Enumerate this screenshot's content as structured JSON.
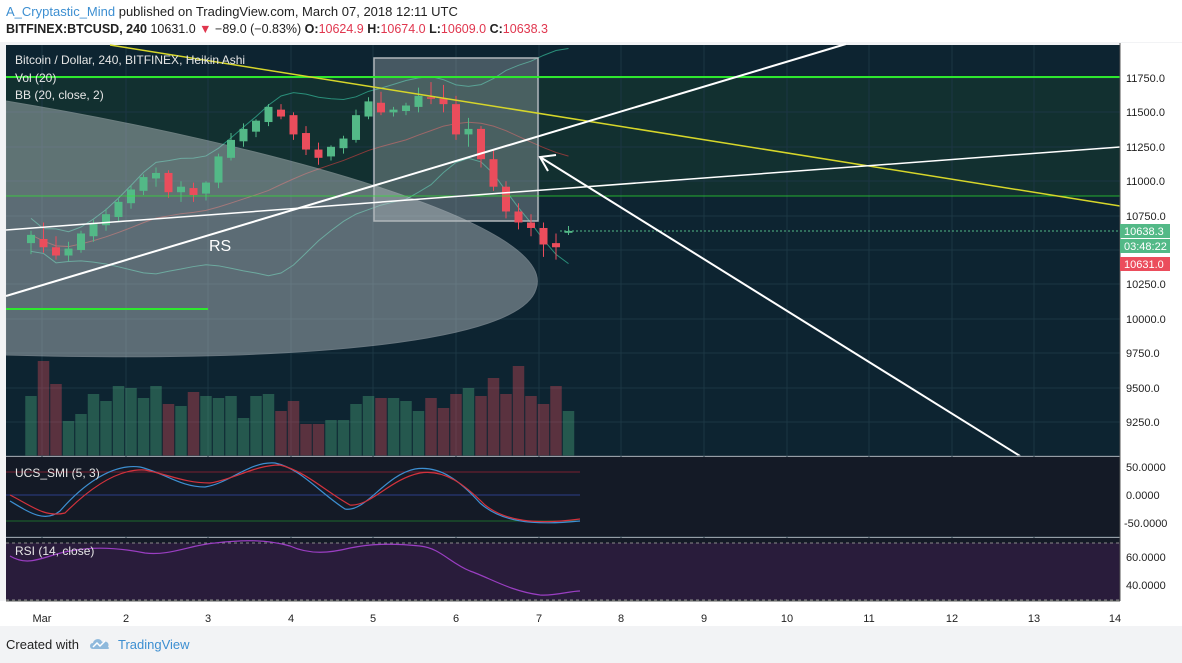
{
  "header": {
    "author": "A_Cryptastic_Mind",
    "published_text": " published on TradingView.com, March 07, 2018 12:11 UTC",
    "symbol": "BITFINEX:BTCUSD, 240",
    "last": "10631.0",
    "change_arrow": "▼",
    "change": "−89.0 (−0.83%)",
    "o_label": "O:",
    "o_value": "10624.9",
    "h_label": "H:",
    "h_value": "10674.0",
    "l_label": "L:",
    "l_value": "10609.0",
    "c_label": "C:",
    "c_value": "10638.3"
  },
  "legend": {
    "title": "Bitcoin / Dollar, 240, BITFINEX, Heikin Ashi",
    "vol": "Vol (20)",
    "bb": "BB (20, close, 2)"
  },
  "annotation": {
    "rs_label": "RS"
  },
  "price_axis": {
    "ticks": [
      "11750.0",
      "11500.0",
      "11250.0",
      "11000.0",
      "10750.0",
      "10250.0",
      "10000.0",
      "9750.0",
      "9500.0",
      "9250.0"
    ],
    "badges": [
      {
        "text": "10638.3",
        "color": "#53b987"
      },
      {
        "text": "03:48:22",
        "color": "#53b987"
      },
      {
        "text": "10631.0",
        "color": "#eb4d5c"
      }
    ]
  },
  "smi_pane": {
    "title": "UCS_SMI (5, 3)",
    "ticks": [
      "50.0000",
      "0.0000",
      "-50.0000"
    ]
  },
  "rsi_pane": {
    "title": "RSI (14, close)",
    "ticks": [
      "60.0000",
      "40.0000"
    ]
  },
  "time_axis": {
    "labels": [
      "Mar",
      "2",
      "3",
      "4",
      "5",
      "6",
      "7",
      "8",
      "9",
      "10",
      "11",
      "12",
      "13",
      "14"
    ]
  },
  "footer": {
    "created_with": "Created with",
    "brand": "TradingView"
  },
  "colors": {
    "background": "#0e2330",
    "up_candle": "#53b987",
    "down_candle": "#eb4d5c",
    "horizontal_level": "#2ee82e",
    "trendline_yellow": "#d6d62a",
    "trendline_white": "#ffffff"
  },
  "chart_data": {
    "type": "candlestick",
    "candles": [
      {
        "o": 10550,
        "h": 10640,
        "l": 10470,
        "c": 10610
      },
      {
        "o": 10580,
        "h": 10700,
        "l": 10480,
        "c": 10520
      },
      {
        "o": 10520,
        "h": 10600,
        "l": 10430,
        "c": 10460
      },
      {
        "o": 10460,
        "h": 10560,
        "l": 10420,
        "c": 10510
      },
      {
        "o": 10500,
        "h": 10640,
        "l": 10480,
        "c": 10620
      },
      {
        "o": 10600,
        "h": 10720,
        "l": 10560,
        "c": 10690
      },
      {
        "o": 10680,
        "h": 10800,
        "l": 10640,
        "c": 10760
      },
      {
        "o": 10740,
        "h": 10870,
        "l": 10710,
        "c": 10850
      },
      {
        "o": 10840,
        "h": 10970,
        "l": 10800,
        "c": 10940
      },
      {
        "o": 10930,
        "h": 11050,
        "l": 10900,
        "c": 11030
      },
      {
        "o": 11020,
        "h": 11100,
        "l": 10960,
        "c": 11060
      },
      {
        "o": 11060,
        "h": 11080,
        "l": 10880,
        "c": 10920
      },
      {
        "o": 10920,
        "h": 11000,
        "l": 10850,
        "c": 10960
      },
      {
        "o": 10950,
        "h": 10990,
        "l": 10850,
        "c": 10900
      },
      {
        "o": 10910,
        "h": 11000,
        "l": 10860,
        "c": 10990
      },
      {
        "o": 10990,
        "h": 11200,
        "l": 10950,
        "c": 11180
      },
      {
        "o": 11170,
        "h": 11350,
        "l": 11150,
        "c": 11300
      },
      {
        "o": 11290,
        "h": 11420,
        "l": 11250,
        "c": 11380
      },
      {
        "o": 11360,
        "h": 11450,
        "l": 11320,
        "c": 11440
      },
      {
        "o": 11430,
        "h": 11560,
        "l": 11400,
        "c": 11540
      },
      {
        "o": 11520,
        "h": 11560,
        "l": 11450,
        "c": 11470
      },
      {
        "o": 11480,
        "h": 11500,
        "l": 11300,
        "c": 11340
      },
      {
        "o": 11350,
        "h": 11400,
        "l": 11190,
        "c": 11230
      },
      {
        "o": 11230,
        "h": 11280,
        "l": 11120,
        "c": 11170
      },
      {
        "o": 11180,
        "h": 11260,
        "l": 11150,
        "c": 11250
      },
      {
        "o": 11240,
        "h": 11330,
        "l": 11200,
        "c": 11310
      },
      {
        "o": 11300,
        "h": 11520,
        "l": 11280,
        "c": 11480
      },
      {
        "o": 11470,
        "h": 11610,
        "l": 11450,
        "c": 11580
      },
      {
        "o": 11570,
        "h": 11650,
        "l": 11480,
        "c": 11500
      },
      {
        "o": 11500,
        "h": 11540,
        "l": 11470,
        "c": 11520
      },
      {
        "o": 11510,
        "h": 11570,
        "l": 11480,
        "c": 11550
      },
      {
        "o": 11540,
        "h": 11680,
        "l": 11500,
        "c": 11620
      },
      {
        "o": 11610,
        "h": 11720,
        "l": 11560,
        "c": 11600
      },
      {
        "o": 11600,
        "h": 11700,
        "l": 11500,
        "c": 11560
      },
      {
        "o": 11560,
        "h": 11620,
        "l": 11300,
        "c": 11340
      },
      {
        "o": 11340,
        "h": 11460,
        "l": 11250,
        "c": 11380
      },
      {
        "o": 11380,
        "h": 11400,
        "l": 11100,
        "c": 11160
      },
      {
        "o": 11160,
        "h": 11230,
        "l": 10930,
        "c": 10960
      },
      {
        "o": 10960,
        "h": 11000,
        "l": 10730,
        "c": 10780
      },
      {
        "o": 10780,
        "h": 10840,
        "l": 10650,
        "c": 10700
      },
      {
        "o": 10700,
        "h": 10760,
        "l": 10600,
        "c": 10660
      },
      {
        "o": 10660,
        "h": 10700,
        "l": 10450,
        "c": 10540
      },
      {
        "o": 10550,
        "h": 10620,
        "l": 10430,
        "c": 10520
      },
      {
        "o": 10624.9,
        "h": 10674,
        "l": 10609,
        "c": 10638.3
      }
    ],
    "volume": [
      60,
      95,
      72,
      35,
      42,
      62,
      55,
      70,
      68,
      58,
      70,
      52,
      50,
      64,
      60,
      58,
      60,
      38,
      60,
      62,
      45,
      55,
      32,
      32,
      36,
      36,
      52,
      60,
      58,
      58,
      55,
      45,
      58,
      48,
      62,
      68,
      60,
      78,
      62,
      90,
      60,
      52,
      70,
      45
    ]
  }
}
